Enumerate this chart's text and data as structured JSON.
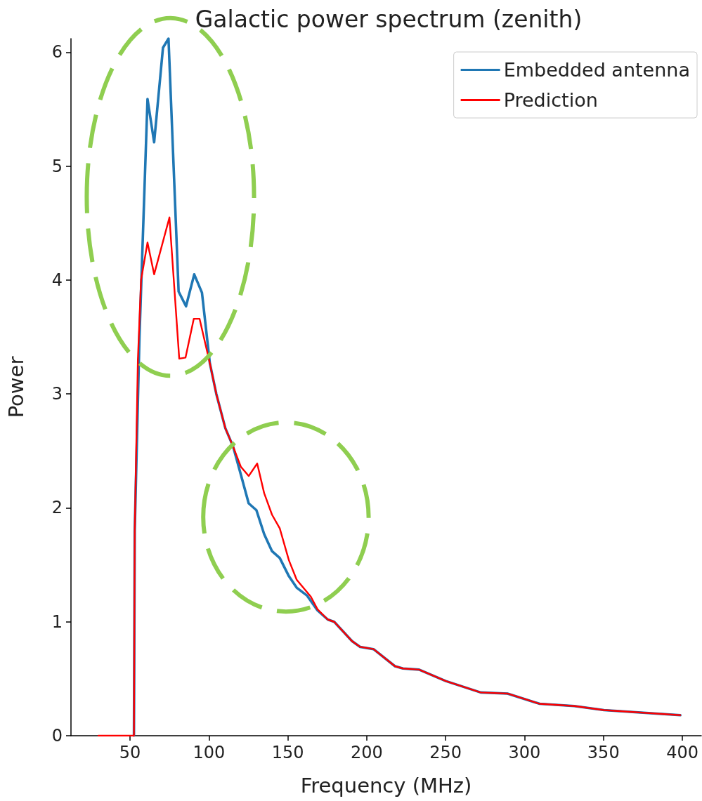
{
  "chart_data": {
    "type": "line",
    "title": "Galactic power spectrum (zenith)",
    "xlabel": "Frequency (MHz)",
    "ylabel": "Power",
    "xlim": [
      12.6,
      412
    ],
    "ylim": [
      0,
      6.12
    ],
    "xticks": [
      50,
      100,
      150,
      200,
      250,
      300,
      350,
      400
    ],
    "yticks": [
      0,
      1,
      2,
      3,
      4,
      5,
      6
    ],
    "grid": false,
    "legend": "top right",
    "marker": "none",
    "line_style": "solid",
    "series": [
      {
        "name": "Embedded antenna",
        "color": "#1f77b4",
        "x": [
          52.5,
          53,
          56,
          61.1,
          65.3,
          70.9,
          74.4,
          80.8,
          85.5,
          90.7,
          95.6,
          100.6,
          104.7,
          110.4,
          115.3,
          120.3,
          125.2,
          130.1,
          135,
          140,
          144.9,
          150.7,
          155.6,
          162.2,
          168.8,
          175.3,
          179.4,
          190.7,
          195.8,
          204.3,
          217.9,
          223,
          233.2,
          250.1,
          272.2,
          289.2,
          309.6,
          331.6,
          350.3,
          398.7
        ],
        "values": [
          0,
          1.8,
          3.5,
          5.59,
          5.21,
          6.04,
          6.12,
          3.9,
          3.77,
          4.05,
          3.89,
          3.27,
          3.0,
          2.7,
          2.54,
          2.29,
          2.04,
          1.98,
          1.77,
          1.62,
          1.56,
          1.4,
          1.3,
          1.23,
          1.1,
          1.02,
          1.0,
          0.83,
          0.78,
          0.76,
          0.61,
          0.59,
          0.58,
          0.48,
          0.38,
          0.37,
          0.28,
          0.26,
          0.225,
          0.18
        ]
      },
      {
        "name": "Prediction",
        "color": "#ff0000",
        "x": [
          30,
          51.5,
          52.5,
          53,
          55,
          57,
          61.1,
          65.3,
          75,
          81.2,
          85.2,
          90.4,
          94.1,
          100.6,
          104.7,
          110.4,
          115.3,
          120.3,
          125.2,
          130.6,
          135,
          140,
          144.9,
          150.7,
          155.6,
          164.6,
          168.8,
          175.3,
          179.4,
          190.7,
          195.8,
          204.3,
          217.9,
          223,
          233.2,
          250.1,
          272.2,
          289.2,
          309.6,
          331.6,
          350.3,
          398.7
        ],
        "values": [
          0,
          0,
          0,
          1.8,
          3.3,
          4.0,
          4.33,
          4.05,
          4.55,
          3.31,
          3.32,
          3.66,
          3.66,
          3.27,
          3.0,
          2.7,
          2.54,
          2.36,
          2.28,
          2.39,
          2.13,
          1.94,
          1.82,
          1.54,
          1.37,
          1.22,
          1.11,
          1.02,
          1.0,
          0.83,
          0.78,
          0.76,
          0.61,
          0.59,
          0.58,
          0.48,
          0.38,
          0.37,
          0.28,
          0.26,
          0.225,
          0.18
        ]
      }
    ]
  }
}
